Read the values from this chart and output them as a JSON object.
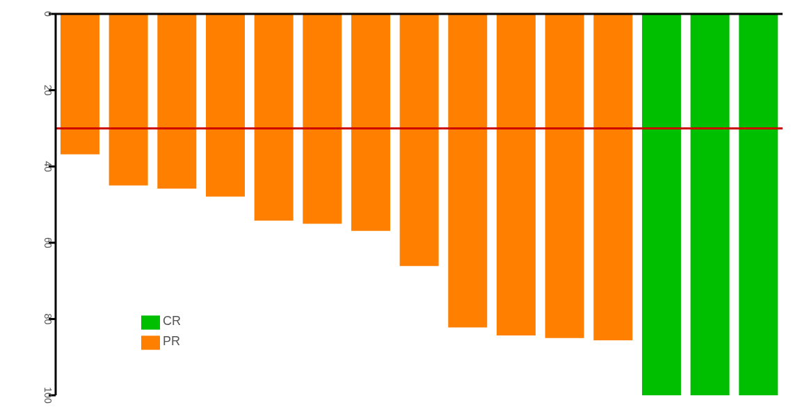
{
  "chart_data": {
    "type": "bar",
    "categories": [
      null,
      null,
      null,
      null,
      null,
      null,
      null,
      null,
      null,
      null,
      null,
      null,
      null,
      null,
      null
    ],
    "series": [
      {
        "name": "CR",
        "color": "#00bf00",
        "values": [
          null,
          null,
          null,
          null,
          null,
          null,
          null,
          null,
          null,
          null,
          null,
          null,
          100,
          100,
          100
        ]
      },
      {
        "name": "PR",
        "color": "#ff8000",
        "values": [
          36.8,
          45,
          45.8,
          47.9,
          54.2,
          55,
          56.9,
          66.1,
          82.2,
          84.3,
          85,
          85.6,
          null,
          null,
          null
        ]
      }
    ],
    "stacked": true,
    "ylim": [
      100,
      0
    ],
    "yticks": [
      0,
      20,
      40,
      60,
      80,
      100
    ],
    "ref_lines": [
      {
        "axis": "y",
        "value": 30,
        "color": "#cc0000"
      }
    ],
    "legend": "bottom left",
    "grid": false
  }
}
